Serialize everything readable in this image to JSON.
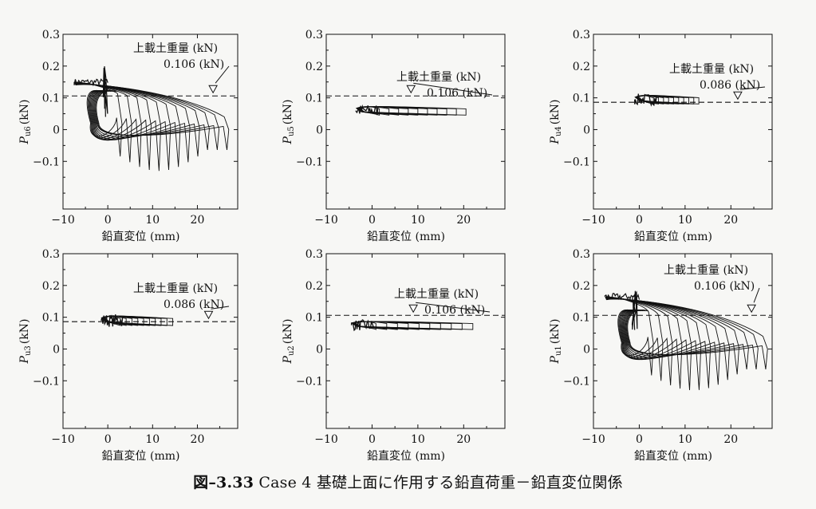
{
  "caption": {
    "number": "図–3.33",
    "text": "Case 4 基礎上面に作用する鉛直荷重－鉛直変位関係"
  },
  "chart_data": [
    {
      "type": "line",
      "ylabel_main": "P",
      "ylabel_sub": "u6",
      "ylabel_unit": "(kN)",
      "xlabel": "鉛直変位 (mm)",
      "xlim": [
        -10,
        29
      ],
      "ylim": [
        -0.25,
        0.3
      ],
      "xticks": [
        -10,
        0,
        10,
        20
      ],
      "yticks": [
        -0.1,
        0,
        0.1,
        0.2,
        0.3
      ],
      "reference": {
        "y": 0.106,
        "label": "上載土重量 (kN)",
        "value_label": "0.106 (kN)",
        "marker_x": 23.5
      },
      "curve_kind": "large",
      "xstart": -7.5,
      "plateau": 0.15,
      "xmax": 27,
      "ymin": -0.13,
      "count": 12,
      "spike": {
        "x": -0.5,
        "from": 0.04,
        "to": 0.21
      }
    },
    {
      "type": "line",
      "ylabel_main": "P",
      "ylabel_sub": "u5",
      "ylabel_unit": "(kN)",
      "xlabel": "鉛直変位 (mm)",
      "xlim": [
        -10,
        29
      ],
      "ylim": [
        -0.25,
        0.3
      ],
      "xticks": [
        -10,
        0,
        10,
        20
      ],
      "yticks": [
        -0.1,
        0,
        0.1,
        0.2,
        0.3
      ],
      "reference": {
        "y": 0.106,
        "label": "上載土重量 (kN)",
        "value_label": "0.106 (kN)",
        "marker_x": 8.5
      },
      "curve_kind": "small",
      "xstart": -3.5,
      "center": 0.06,
      "amp": 0.018,
      "xmax": 20.5,
      "count": 10
    },
    {
      "type": "line",
      "ylabel_main": "P",
      "ylabel_sub": "u4",
      "ylabel_unit": "(kN)",
      "xlabel": "鉛直変位 (mm)",
      "xlim": [
        -10,
        29
      ],
      "ylim": [
        -0.25,
        0.3
      ],
      "xticks": [
        -10,
        0,
        10,
        20
      ],
      "yticks": [
        -0.1,
        0,
        0.1,
        0.2,
        0.3
      ],
      "reference": {
        "y": 0.086,
        "label": "上載土重量 (kN)",
        "value_label": "0.086 (kN)",
        "marker_x": 21.5
      },
      "curve_kind": "small",
      "xstart": -1,
      "center": 0.095,
      "amp": 0.018,
      "xmax": 13,
      "count": 10
    },
    {
      "type": "line",
      "ylabel_main": "P",
      "ylabel_sub": "u3",
      "ylabel_unit": "(kN)",
      "xlabel": "鉛直変位 (mm)",
      "xlim": [
        -10,
        29
      ],
      "ylim": [
        -0.25,
        0.3
      ],
      "xticks": [
        -10,
        0,
        10,
        20
      ],
      "yticks": [
        -0.1,
        0,
        0.1,
        0.2,
        0.3
      ],
      "reference": {
        "y": 0.086,
        "label": "上載土重量 (kN)",
        "value_label": "0.086 (kN)",
        "marker_x": 22.5
      },
      "curve_kind": "small",
      "xstart": -1.5,
      "center": 0.09,
      "amp": 0.02,
      "xmax": 14.5,
      "count": 10
    },
    {
      "type": "line",
      "ylabel_main": "P",
      "ylabel_sub": "u2",
      "ylabel_unit": "(kN)",
      "xlabel": "鉛直変位 (mm)",
      "xlim": [
        -10,
        29
      ],
      "ylim": [
        -0.25,
        0.3
      ],
      "xticks": [
        -10,
        0,
        10,
        20
      ],
      "yticks": [
        -0.1,
        0,
        0.1,
        0.2,
        0.3
      ],
      "reference": {
        "y": 0.106,
        "label": "上載土重量 (kN)",
        "value_label": "0.106 (kN)",
        "marker_x": 9
      },
      "curve_kind": "small",
      "xstart": -4.5,
      "center": 0.075,
      "amp": 0.017,
      "xmax": 22,
      "count": 10
    },
    {
      "type": "line",
      "ylabel_main": "P",
      "ylabel_sub": "u1",
      "ylabel_unit": "(kN)",
      "xlabel": "鉛直変位 (mm)",
      "xlim": [
        -10,
        29
      ],
      "ylim": [
        -0.25,
        0.3
      ],
      "xticks": [
        -10,
        0,
        10,
        20
      ],
      "yticks": [
        -0.1,
        0,
        0.1,
        0.2,
        0.3
      ],
      "reference": {
        "y": 0.106,
        "label": "上載土重量 (kN)",
        "value_label": "0.106 (kN)",
        "marker_x": 24.5
      },
      "curve_kind": "large",
      "xstart": -7.5,
      "plateau": 0.165,
      "xmax": 28,
      "ymin": -0.13,
      "count": 13,
      "spike": {
        "x": -1,
        "from": 0.06,
        "to": 0.19
      }
    }
  ]
}
